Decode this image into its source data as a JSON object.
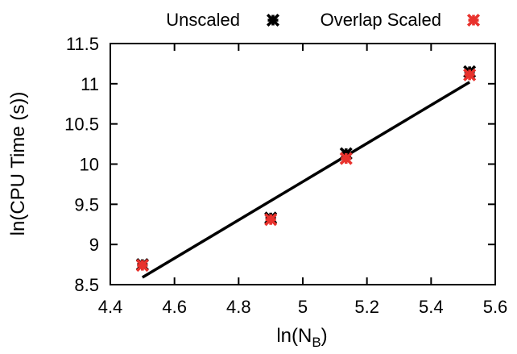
{
  "chart_data": {
    "type": "scatter",
    "xlabel_base": "ln(N",
    "xlabel_sub": "B",
    "xlabel_close": ")",
    "ylabel": "ln(CPU Time (s))",
    "xlim": [
      4.4,
      5.6
    ],
    "ylim": [
      8.5,
      11.5
    ],
    "x_ticks": [
      "4.4",
      "4.6",
      "4.8",
      "5",
      "5.2",
      "5.4",
      "5.6"
    ],
    "y_ticks": [
      "8.5",
      "9",
      "9.5",
      "10",
      "10.5",
      "11",
      "11.5"
    ],
    "grid": false,
    "legend_position": "top",
    "series": [
      {
        "name": "Unscaled",
        "color": "#000000",
        "marker": "x-star",
        "points": [
          {
            "x": 4.5,
            "y": 8.75
          },
          {
            "x": 4.9,
            "y": 9.33
          },
          {
            "x": 5.135,
            "y": 10.13
          },
          {
            "x": 5.52,
            "y": 11.15
          }
        ]
      },
      {
        "name": "Overlap Scaled",
        "color": "#e8322d",
        "marker": "x-star",
        "points": [
          {
            "x": 4.5,
            "y": 8.74
          },
          {
            "x": 4.9,
            "y": 9.31
          },
          {
            "x": 5.135,
            "y": 10.07
          },
          {
            "x": 5.52,
            "y": 11.11
          }
        ]
      }
    ],
    "fit_line": {
      "color": "#000000",
      "points": [
        {
          "x": 4.5,
          "y": 8.59
        },
        {
          "x": 5.52,
          "y": 11.02
        }
      ]
    }
  }
}
